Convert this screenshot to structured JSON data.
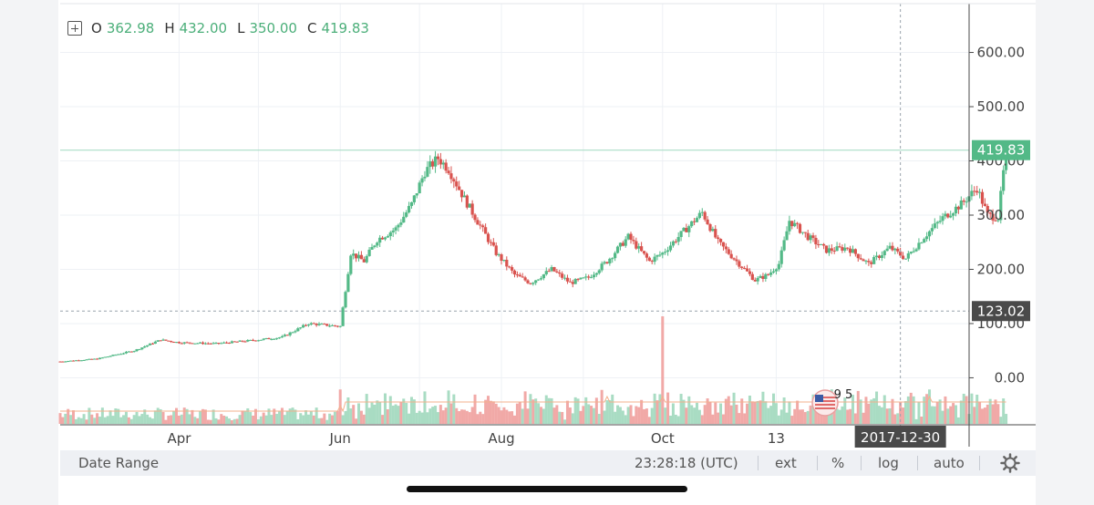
{
  "header": {
    "ohlc": [
      {
        "key": "O",
        "value": "362.98"
      },
      {
        "key": "H",
        "value": "432.00"
      },
      {
        "key": "L",
        "value": "350.00"
      },
      {
        "key": "C",
        "value": "419.83"
      }
    ]
  },
  "chart_data": {
    "type": "candlestick",
    "y_ticks": [
      "600.00",
      "500.00",
      "400.00",
      "300.00",
      "200.00",
      "100.00",
      "0.00"
    ],
    "y_tick_values": [
      600,
      500,
      400,
      300,
      200,
      100,
      0
    ],
    "ylim": [
      -85,
      690
    ],
    "x_ticks": [
      "Apr",
      "Jun",
      "Aug",
      "Oct",
      "13"
    ],
    "x_tick_dates": [
      "2017-04-01",
      "2017-06-01",
      "2017-08-01",
      "2017-10-01",
      "2017-11-13"
    ],
    "x_range": [
      "2017-02-15",
      "2018-01-25"
    ],
    "last_price_label": "419.83",
    "last_price_value": 419.83,
    "crosshair_price_label": "123.02",
    "crosshair_price_value": 123.02,
    "crosshair_date_label": "2017-12-30",
    "crosshair_date": "2017-12-30",
    "up_color": "#53b987",
    "down_color": "#d9534f",
    "grid": true,
    "close_path": [
      [
        "2017-02-15",
        30
      ],
      [
        "2017-03-01",
        35
      ],
      [
        "2017-03-15",
        50
      ],
      [
        "2017-03-25",
        70
      ],
      [
        "2017-04-01",
        65
      ],
      [
        "2017-04-15",
        63
      ],
      [
        "2017-05-01",
        70
      ],
      [
        "2017-05-10",
        75
      ],
      [
        "2017-05-20",
        100
      ],
      [
        "2017-06-01",
        95
      ],
      [
        "2017-06-05",
        230
      ],
      [
        "2017-06-10",
        215
      ],
      [
        "2017-06-15",
        255
      ],
      [
        "2017-06-22",
        275
      ],
      [
        "2017-06-28",
        320
      ],
      [
        "2017-07-03",
        380
      ],
      [
        "2017-07-08",
        405
      ],
      [
        "2017-07-12",
        385
      ],
      [
        "2017-07-18",
        330
      ],
      [
        "2017-07-24",
        280
      ],
      [
        "2017-07-30",
        230
      ],
      [
        "2017-08-06",
        190
      ],
      [
        "2017-08-12",
        175
      ],
      [
        "2017-08-20",
        200
      ],
      [
        "2017-08-27",
        175
      ],
      [
        "2017-09-03",
        185
      ],
      [
        "2017-09-10",
        215
      ],
      [
        "2017-09-18",
        260
      ],
      [
        "2017-09-26",
        215
      ],
      [
        "2017-10-01",
        230
      ],
      [
        "2017-10-07",
        260
      ],
      [
        "2017-10-16",
        305
      ],
      [
        "2017-10-22",
        250
      ],
      [
        "2017-10-28",
        220
      ],
      [
        "2017-11-05",
        180
      ],
      [
        "2017-11-10",
        190
      ],
      [
        "2017-11-14",
        210
      ],
      [
        "2017-11-18",
        290
      ],
      [
        "2017-11-25",
        260
      ],
      [
        "2017-12-02",
        235
      ],
      [
        "2017-12-10",
        240
      ],
      [
        "2017-12-18",
        210
      ],
      [
        "2017-12-26",
        240
      ],
      [
        "2018-01-01",
        220
      ],
      [
        "2018-01-08",
        260
      ],
      [
        "2018-01-15",
        295
      ],
      [
        "2018-01-22",
        320
      ],
      [
        "2018-01-28",
        350
      ],
      [
        "2018-02-01",
        300
      ],
      [
        "2018-02-05",
        295
      ],
      [
        "2018-02-08",
        419.83
      ]
    ],
    "volume_spikes": [
      {
        "date": "2017-06-01",
        "height": 0.32
      },
      {
        "date": "2017-10-01",
        "height": 1.0
      },
      {
        "date": "2018-01-10",
        "height": 0.32
      },
      {
        "date": "2017-09-10",
        "height": 0.22
      }
    ]
  },
  "watermark": {
    "digits": "9 5"
  },
  "toolbar": {
    "date_range": "Date Range",
    "clock": "23:28:18 (UTC)",
    "ext": "ext",
    "percent": "%",
    "log": "log",
    "auto": "auto",
    "settings_icon": "gear-icon"
  }
}
